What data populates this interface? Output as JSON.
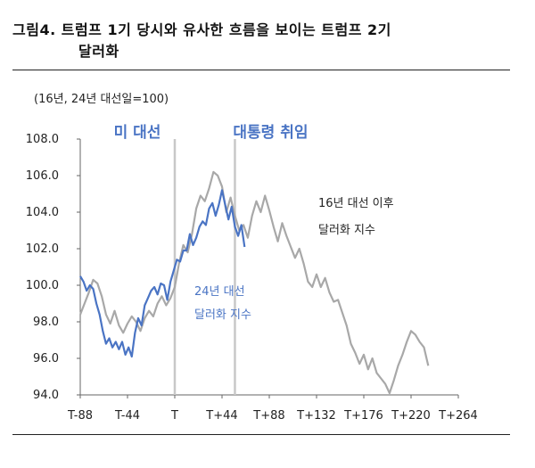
{
  "figure": {
    "title_line1": "그림4.  트럼프  1기  당시와  유사한  흐름을  보이는  트럼프  2기",
    "title_line2": "달러화",
    "subtitle": "(16년, 24년 대선일=100)"
  },
  "chart_data": {
    "type": "line",
    "x_tick_labels": [
      "T-88",
      "T-44",
      "T",
      "T+44",
      "T+88",
      "T+132",
      "T+176",
      "T+220",
      "T+264"
    ],
    "x_tick_values": [
      -88,
      -44,
      0,
      44,
      88,
      132,
      176,
      220,
      264
    ],
    "xlim": [
      -88,
      264
    ],
    "ylim": [
      94,
      108
    ],
    "y_tick_labels": [
      "108.0",
      "106.0",
      "104.0",
      "102.0",
      "100.0",
      "98.0",
      "96.0",
      "94.0"
    ],
    "y_tick_values": [
      108,
      106,
      104,
      102,
      100,
      98,
      96,
      94
    ],
    "vertical_markers": [
      {
        "x": 0,
        "label": "미 대선"
      },
      {
        "x": 56,
        "label": "대통령 취임"
      }
    ],
    "series": [
      {
        "name": "16년 대선 이후 달러화 지수",
        "name_line1": "16년 대선 이후",
        "name_line2": "달러화 지수",
        "color": "#a8a8a8",
        "points": [
          [
            -88,
            98.4
          ],
          [
            -84,
            99.0
          ],
          [
            -80,
            99.6
          ],
          [
            -76,
            100.3
          ],
          [
            -72,
            100.1
          ],
          [
            -68,
            99.4
          ],
          [
            -64,
            98.4
          ],
          [
            -60,
            97.9
          ],
          [
            -56,
            98.6
          ],
          [
            -52,
            97.8
          ],
          [
            -48,
            97.4
          ],
          [
            -44,
            97.9
          ],
          [
            -40,
            98.3
          ],
          [
            -36,
            98.0
          ],
          [
            -32,
            97.5
          ],
          [
            -28,
            98.2
          ],
          [
            -24,
            98.6
          ],
          [
            -20,
            98.3
          ],
          [
            -16,
            99.0
          ],
          [
            -12,
            99.4
          ],
          [
            -8,
            98.9
          ],
          [
            -4,
            99.3
          ],
          [
            0,
            99.9
          ],
          [
            4,
            101.2
          ],
          [
            8,
            102.2
          ],
          [
            12,
            101.8
          ],
          [
            16,
            102.8
          ],
          [
            20,
            104.2
          ],
          [
            24,
            104.9
          ],
          [
            28,
            104.6
          ],
          [
            32,
            105.3
          ],
          [
            36,
            106.2
          ],
          [
            40,
            106.0
          ],
          [
            44,
            105.4
          ],
          [
            48,
            104.0
          ],
          [
            52,
            104.8
          ],
          [
            56,
            103.8
          ],
          [
            60,
            103.0
          ],
          [
            64,
            103.3
          ],
          [
            68,
            102.6
          ],
          [
            72,
            103.8
          ],
          [
            76,
            104.6
          ],
          [
            80,
            104.0
          ],
          [
            84,
            104.9
          ],
          [
            88,
            104.1
          ],
          [
            92,
            103.2
          ],
          [
            96,
            102.4
          ],
          [
            100,
            103.4
          ],
          [
            104,
            102.7
          ],
          [
            108,
            102.1
          ],
          [
            112,
            101.5
          ],
          [
            116,
            102.0
          ],
          [
            120,
            101.2
          ],
          [
            124,
            100.2
          ],
          [
            128,
            99.9
          ],
          [
            132,
            100.6
          ],
          [
            136,
            99.9
          ],
          [
            140,
            100.4
          ],
          [
            144,
            99.6
          ],
          [
            148,
            99.1
          ],
          [
            152,
            99.2
          ],
          [
            156,
            98.5
          ],
          [
            160,
            97.8
          ],
          [
            164,
            96.8
          ],
          [
            168,
            96.3
          ],
          [
            172,
            95.7
          ],
          [
            176,
            96.2
          ],
          [
            180,
            95.4
          ],
          [
            184,
            96.0
          ],
          [
            188,
            95.2
          ],
          [
            192,
            94.9
          ],
          [
            196,
            94.6
          ],
          [
            200,
            94.1
          ],
          [
            204,
            94.8
          ],
          [
            208,
            95.6
          ],
          [
            212,
            96.2
          ],
          [
            216,
            96.9
          ],
          [
            220,
            97.5
          ],
          [
            224,
            97.3
          ],
          [
            228,
            96.9
          ],
          [
            232,
            96.6
          ],
          [
            236,
            95.6
          ]
        ]
      },
      {
        "name": "24년 대선 달러화 지수",
        "name_line1": "24년 대선",
        "name_line2": "달러화 지수",
        "color": "#4a74c4",
        "points": [
          [
            -88,
            100.5
          ],
          [
            -85,
            100.2
          ],
          [
            -82,
            99.7
          ],
          [
            -79,
            100.0
          ],
          [
            -76,
            99.8
          ],
          [
            -73,
            99.0
          ],
          [
            -70,
            98.4
          ],
          [
            -67,
            97.5
          ],
          [
            -64,
            96.8
          ],
          [
            -61,
            97.1
          ],
          [
            -58,
            96.6
          ],
          [
            -55,
            96.9
          ],
          [
            -52,
            96.5
          ],
          [
            -49,
            96.9
          ],
          [
            -46,
            96.2
          ],
          [
            -43,
            96.6
          ],
          [
            -40,
            96.1
          ],
          [
            -37,
            97.4
          ],
          [
            -34,
            98.2
          ],
          [
            -31,
            97.8
          ],
          [
            -28,
            98.9
          ],
          [
            -25,
            99.3
          ],
          [
            -22,
            99.7
          ],
          [
            -19,
            99.9
          ],
          [
            -16,
            99.5
          ],
          [
            -13,
            100.1
          ],
          [
            -10,
            100.0
          ],
          [
            -7,
            99.2
          ],
          [
            -4,
            100.2
          ],
          [
            -1,
            100.8
          ],
          [
            2,
            101.4
          ],
          [
            5,
            101.3
          ],
          [
            8,
            101.9
          ],
          [
            11,
            101.9
          ],
          [
            14,
            102.8
          ],
          [
            17,
            102.2
          ],
          [
            20,
            102.6
          ],
          [
            23,
            103.2
          ],
          [
            26,
            103.5
          ],
          [
            29,
            103.3
          ],
          [
            32,
            104.2
          ],
          [
            35,
            104.5
          ],
          [
            38,
            103.8
          ],
          [
            41,
            104.4
          ],
          [
            44,
            105.2
          ],
          [
            47,
            104.4
          ],
          [
            50,
            103.6
          ],
          [
            53,
            104.3
          ],
          [
            56,
            103.2
          ],
          [
            59,
            102.7
          ],
          [
            62,
            103.3
          ],
          [
            65,
            102.1
          ]
        ]
      }
    ]
  }
}
